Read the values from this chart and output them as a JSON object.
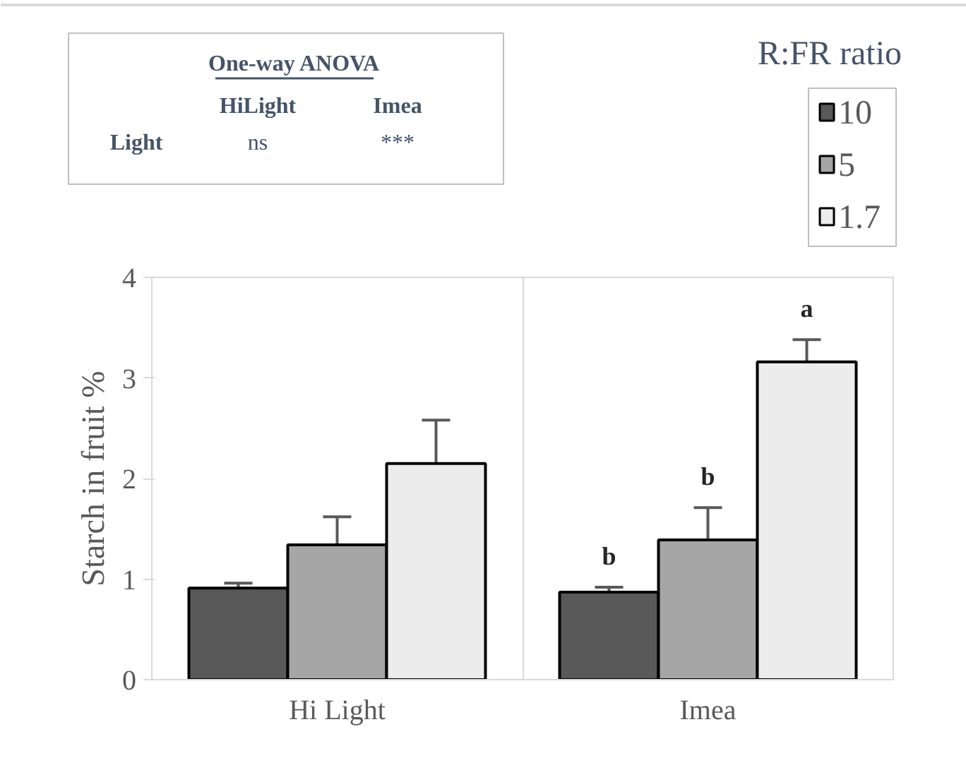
{
  "chart_data": {
    "type": "bar",
    "categories": [
      "Hi Light",
      "Imea"
    ],
    "ylabel": "Starch in fruit %",
    "legend_title": "R:FR ratio",
    "legend": "top right",
    "grid": "x",
    "ylim": [
      0,
      4
    ],
    "yticks": [
      0,
      1,
      2,
      3,
      4
    ],
    "series": [
      {
        "name": "10",
        "color": "#595959",
        "values": [
          0.91,
          0.87
        ],
        "errors": [
          0.05,
          0.05
        ],
        "value_labels": [
          null,
          "b"
        ]
      },
      {
        "name": "5",
        "color": "#a6a6a6",
        "values": [
          1.34,
          1.39
        ],
        "errors": [
          0.28,
          0.32
        ],
        "value_labels": [
          null,
          "b"
        ]
      },
      {
        "name": "1.7",
        "color": "#ececec",
        "values": [
          2.15,
          3.16
        ],
        "errors": [
          0.43,
          0.22
        ],
        "value_labels": [
          null,
          "a"
        ]
      }
    ],
    "annotations": [
      "One-way ANOVA",
      "HiLight",
      "Imea",
      "Light",
      "ns",
      "***"
    ]
  }
}
